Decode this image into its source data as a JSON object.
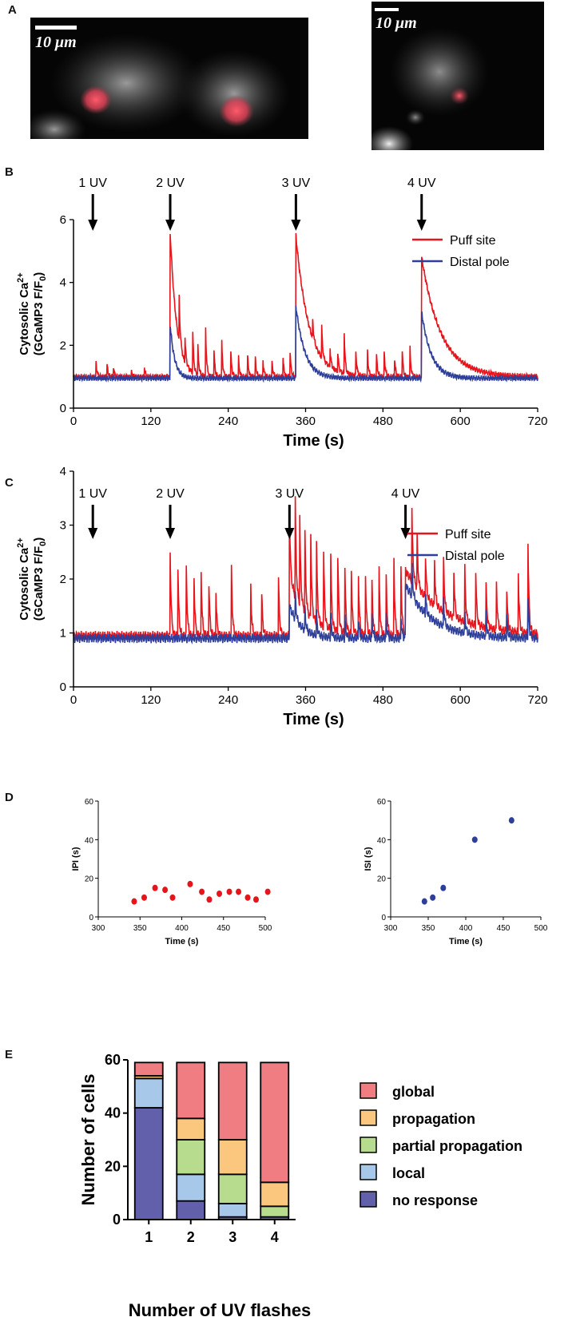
{
  "figure": {
    "panels": [
      "A",
      "B",
      "C",
      "D",
      "E"
    ]
  },
  "micrographs": {
    "left_scale": "10 μm",
    "right_scale": "10 μm"
  },
  "chart_data": [
    {
      "id": "B",
      "type": "line",
      "ylabel_line1": "Cytosolic Ca",
      "ylabel_sup": "2+",
      "ylabel_line2": "(GCaMP3 F/F",
      "ylabel_sub": "0",
      "ylabel_close": ")",
      "xlabel": "Time (s)",
      "xlim": [
        0,
        720
      ],
      "ylim": [
        0,
        6
      ],
      "xticks": [
        0,
        120,
        240,
        360,
        480,
        600,
        720
      ],
      "yticks": [
        0,
        2,
        4,
        6
      ],
      "flashes": [
        {
          "label": "1 UV",
          "t": 30
        },
        {
          "label": "2 UV",
          "t": 150
        },
        {
          "label": "3 UV",
          "t": 345
        },
        {
          "label": "4 UV",
          "t": 540
        }
      ],
      "legend": [
        {
          "name": "Puff site",
          "color": "#e8141b"
        },
        {
          "name": "Distal pole",
          "color": "#2e3f9a"
        }
      ],
      "series": [
        {
          "name": "Puff site",
          "color": "#e8141b",
          "baseline": 1.0,
          "decays": [
            {
              "t": 150,
              "amp": 4.6,
              "tau": 10
            },
            {
              "t": 345,
              "amp": 4.5,
              "tau": 20
            },
            {
              "t": 540,
              "amp": 3.8,
              "tau": 30
            }
          ],
          "puffs": [
            [
              35,
              0.5
            ],
            [
              52,
              0.4
            ],
            [
              62,
              0.3
            ],
            [
              90,
              0.2
            ],
            [
              110,
              0.3
            ],
            [
              164,
              1.4
            ],
            [
              173,
              0.8
            ],
            [
              185,
              1.3
            ],
            [
              193,
              0.9
            ],
            [
              205,
              1.5
            ],
            [
              218,
              0.8
            ],
            [
              230,
              1.1
            ],
            [
              244,
              0.8
            ],
            [
              256,
              0.6
            ],
            [
              270,
              0.7
            ],
            [
              282,
              0.6
            ],
            [
              294,
              0.5
            ],
            [
              308,
              0.5
            ],
            [
              325,
              0.6
            ],
            [
              336,
              0.8
            ],
            [
              371,
              0.6
            ],
            [
              385,
              1.0
            ],
            [
              398,
              0.6
            ],
            [
              410,
              0.6
            ],
            [
              420,
              1.3
            ],
            [
              438,
              0.8
            ],
            [
              456,
              0.8
            ],
            [
              470,
              0.7
            ],
            [
              482,
              0.8
            ],
            [
              498,
              0.6
            ],
            [
              510,
              0.8
            ],
            [
              522,
              0.9
            ]
          ]
        },
        {
          "name": "Distal pole",
          "color": "#2e3f9a",
          "baseline": 0.95,
          "decays": [
            {
              "t": 150,
              "amp": 1.7,
              "tau": 7
            },
            {
              "t": 345,
              "amp": 2.3,
              "tau": 14
            },
            {
              "t": 540,
              "amp": 2.1,
              "tau": 15
            }
          ],
          "puffs": []
        }
      ]
    },
    {
      "id": "C",
      "type": "line",
      "ylabel_line1": "Cytosolic Ca",
      "ylabel_sup": "2+",
      "ylabel_line2": "(GCaMP3 F/F",
      "ylabel_sub": "0",
      "ylabel_close": ")",
      "xlabel": "Time (s)",
      "xlim": [
        0,
        720
      ],
      "ylim": [
        0,
        4
      ],
      "xticks": [
        0,
        120,
        240,
        360,
        480,
        600,
        720
      ],
      "yticks": [
        0,
        1,
        2,
        3,
        4
      ],
      "flashes": [
        {
          "label": "1 UV",
          "t": 30
        },
        {
          "label": "2 UV",
          "t": 150
        },
        {
          "label": "3 UV",
          "t": 335
        },
        {
          "label": "4 UV",
          "t": 515
        }
      ],
      "legend": [
        {
          "name": "Puff site",
          "color": "#e8141b"
        },
        {
          "name": "Distal pole",
          "color": "#2e3f9a"
        }
      ],
      "series": [
        {
          "name": "Puff site",
          "color": "#e8141b",
          "baseline": 0.95,
          "decays": [
            {
              "t": 335,
              "amp": 1.0,
              "tau": 30
            },
            {
              "t": 515,
              "amp": 1.2,
              "tau": 60
            }
          ],
          "puffs": [
            [
              150,
              1.6
            ],
            [
              162,
              1.3
            ],
            [
              175,
              1.3
            ],
            [
              187,
              1.1
            ],
            [
              198,
              1.2
            ],
            [
              210,
              1.0
            ],
            [
              221,
              0.8
            ],
            [
              245,
              1.3
            ],
            [
              275,
              0.9
            ],
            [
              292,
              0.8
            ],
            [
              318,
              1.1
            ],
            [
              335,
              1.4
            ],
            [
              344,
              1.8
            ],
            [
              351,
              1.6
            ],
            [
              359,
              1.5
            ],
            [
              368,
              1.6
            ],
            [
              377,
              1.5
            ],
            [
              388,
              1.4
            ],
            [
              399,
              1.4
            ],
            [
              410,
              1.4
            ],
            [
              421,
              1.2
            ],
            [
              431,
              1.2
            ],
            [
              442,
              1.1
            ],
            [
              453,
              1.1
            ],
            [
              463,
              1.0
            ],
            [
              474,
              1.2
            ],
            [
              485,
              1.1
            ],
            [
              497,
              1.4
            ],
            [
              508,
              1.3
            ],
            [
              525,
              1.3
            ],
            [
              533,
              1.0
            ],
            [
              546,
              0.8
            ],
            [
              560,
              0.8
            ],
            [
              574,
              1.0
            ],
            [
              590,
              0.9
            ],
            [
              607,
              1.0
            ],
            [
              624,
              1.0
            ],
            [
              640,
              0.8
            ],
            [
              656,
              0.9
            ],
            [
              672,
              0.8
            ],
            [
              690,
              1.1
            ],
            [
              705,
              1.7
            ]
          ]
        },
        {
          "name": "Distal pole",
          "color": "#2e3f9a",
          "baseline": 0.9,
          "decays": [
            {
              "t": 335,
              "amp": 0.6,
              "tau": 18
            },
            {
              "t": 515,
              "amp": 1.0,
              "tau": 40
            }
          ],
          "puffs": [
            [
              344,
              0.5
            ],
            [
              359,
              0.4
            ],
            [
              377,
              0.4
            ],
            [
              399,
              0.4
            ],
            [
              421,
              0.4
            ],
            [
              442,
              0.4
            ],
            [
              463,
              0.4
            ],
            [
              485,
              0.4
            ],
            [
              508,
              0.4
            ],
            [
              525,
              0.6
            ],
            [
              546,
              0.4
            ],
            [
              574,
              0.5
            ],
            [
              607,
              0.4
            ],
            [
              640,
              0.4
            ],
            [
              672,
              0.4
            ],
            [
              705,
              0.8
            ]
          ]
        }
      ]
    },
    {
      "id": "D1",
      "type": "scatter",
      "xlabel": "Time (s)",
      "ylabel": "IPI (s)",
      "xlim": [
        300,
        500
      ],
      "ylim": [
        0,
        60
      ],
      "xticks": [
        300,
        350,
        400,
        450,
        500
      ],
      "yticks": [
        0,
        20,
        40,
        60
      ],
      "color": "#e8141b",
      "x": [
        343,
        355,
        368,
        380,
        389,
        410,
        424,
        433,
        445,
        457,
        468,
        479,
        489,
        503
      ],
      "y": [
        8,
        10,
        15,
        14,
        10,
        17,
        13,
        9,
        12,
        13,
        13,
        10,
        9,
        13
      ]
    },
    {
      "id": "D2",
      "type": "scatter",
      "xlabel": "Time (s)",
      "ylabel": "ISI (s)",
      "xlim": [
        300,
        500
      ],
      "ylim": [
        0,
        60
      ],
      "xticks": [
        300,
        350,
        400,
        450,
        500
      ],
      "yticks": [
        0,
        20,
        40,
        60
      ],
      "color": "#2e3f9a",
      "x": [
        345,
        356,
        370,
        412,
        461
      ],
      "y": [
        8,
        10,
        15,
        40,
        50
      ]
    },
    {
      "id": "E",
      "type": "bar",
      "stacked": true,
      "title": "",
      "xlabel": "Number of UV flashes",
      "ylabel": "Number of cells",
      "ylim": [
        0,
        60
      ],
      "yticks": [
        0,
        20,
        40,
        60
      ],
      "categories": [
        "1",
        "2",
        "3",
        "4"
      ],
      "series": [
        {
          "name": "no response",
          "color": "#6260ab",
          "values": [
            42,
            7,
            1,
            1
          ]
        },
        {
          "name": "local",
          "color": "#a7c8e8",
          "values": [
            11,
            10,
            5,
            0
          ]
        },
        {
          "name": "partial propagation",
          "color": "#b7dc8e",
          "values": [
            0,
            13,
            11,
            4
          ]
        },
        {
          "name": "propagation",
          "color": "#fbc77e",
          "values": [
            1,
            8,
            13,
            9
          ]
        },
        {
          "name": "global",
          "color": "#ef7d82",
          "values": [
            5,
            21,
            29,
            45
          ]
        }
      ],
      "legend_order": [
        "global",
        "propagation",
        "partial propagation",
        "local",
        "no response"
      ]
    }
  ]
}
